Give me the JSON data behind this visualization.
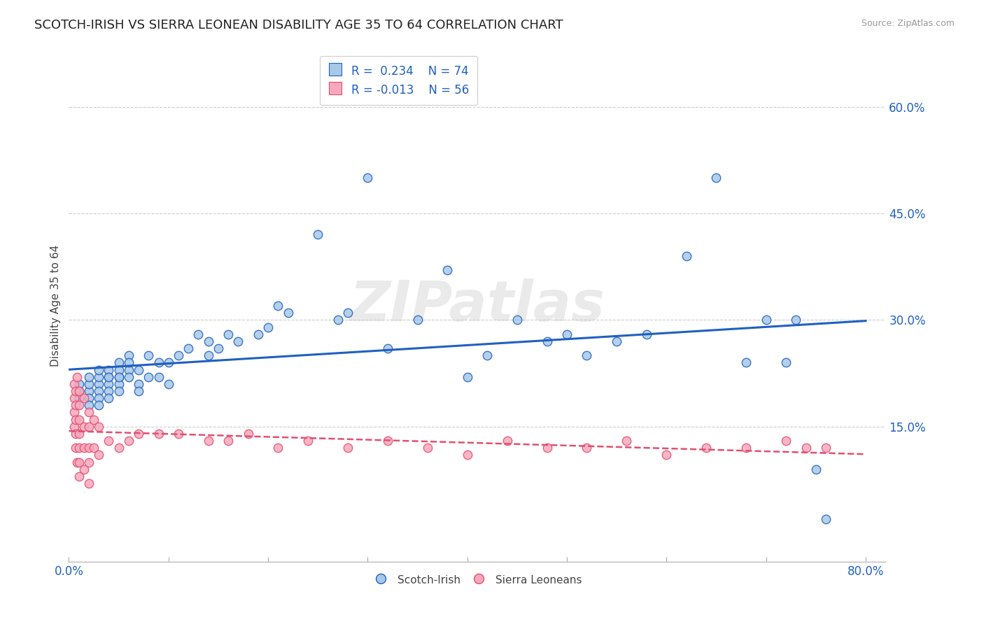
{
  "title": "SCOTCH-IRISH VS SIERRA LEONEAN DISABILITY AGE 35 TO 64 CORRELATION CHART",
  "source": "Source: ZipAtlas.com",
  "ylabel": "Disability Age 35 to 64",
  "xlim": [
    0.0,
    0.82
  ],
  "ylim": [
    -0.04,
    0.68
  ],
  "ytick_vals": [
    0.15,
    0.3,
    0.45,
    0.6
  ],
  "ytick_labels": [
    "15.0%",
    "30.0%",
    "45.0%",
    "60.0%"
  ],
  "xtick_vals": [
    0.0,
    0.1,
    0.2,
    0.3,
    0.4,
    0.5,
    0.6,
    0.7,
    0.8
  ],
  "xtick_labels": [
    "0.0%",
    "",
    "",
    "",
    "",
    "",
    "",
    "",
    "80.0%"
  ],
  "legend_line1": "R =  0.234    N = 74",
  "legend_line2": "R = -0.013    N = 56",
  "scotch_irish_color": "#a8c8e8",
  "sierra_leonean_color": "#f8a8bc",
  "scotch_irish_line_color": "#2060c0",
  "sierra_leonean_line_color": "#e05070",
  "watermark": "ZIPatlas",
  "background_color": "#ffffff",
  "grid_color": "#cccccc",
  "scotch_irish_x": [
    0.01,
    0.01,
    0.01,
    0.02,
    0.02,
    0.02,
    0.02,
    0.02,
    0.03,
    0.03,
    0.03,
    0.03,
    0.03,
    0.03,
    0.04,
    0.04,
    0.04,
    0.04,
    0.04,
    0.04,
    0.05,
    0.05,
    0.05,
    0.05,
    0.05,
    0.05,
    0.06,
    0.06,
    0.06,
    0.06,
    0.07,
    0.07,
    0.07,
    0.08,
    0.08,
    0.09,
    0.09,
    0.1,
    0.1,
    0.11,
    0.12,
    0.13,
    0.14,
    0.14,
    0.15,
    0.16,
    0.17,
    0.19,
    0.2,
    0.21,
    0.22,
    0.25,
    0.27,
    0.28,
    0.3,
    0.32,
    0.35,
    0.38,
    0.4,
    0.42,
    0.45,
    0.48,
    0.5,
    0.52,
    0.55,
    0.58,
    0.62,
    0.65,
    0.68,
    0.7,
    0.72,
    0.73,
    0.75,
    0.76
  ],
  "scotch_irish_y": [
    0.2,
    0.19,
    0.21,
    0.2,
    0.21,
    0.19,
    0.22,
    0.18,
    0.21,
    0.2,
    0.22,
    0.19,
    0.18,
    0.23,
    0.22,
    0.21,
    0.2,
    0.23,
    0.19,
    0.22,
    0.24,
    0.22,
    0.21,
    0.23,
    0.2,
    0.22,
    0.25,
    0.23,
    0.22,
    0.24,
    0.23,
    0.21,
    0.2,
    0.25,
    0.22,
    0.24,
    0.22,
    0.24,
    0.21,
    0.25,
    0.26,
    0.28,
    0.27,
    0.25,
    0.26,
    0.28,
    0.27,
    0.28,
    0.29,
    0.32,
    0.31,
    0.42,
    0.3,
    0.31,
    0.5,
    0.26,
    0.3,
    0.37,
    0.22,
    0.25,
    0.3,
    0.27,
    0.28,
    0.25,
    0.27,
    0.28,
    0.39,
    0.5,
    0.24,
    0.3,
    0.24,
    0.3,
    0.09,
    0.02
  ],
  "sierra_leonean_x": [
    0.005,
    0.005,
    0.005,
    0.005,
    0.007,
    0.007,
    0.007,
    0.007,
    0.007,
    0.008,
    0.008,
    0.01,
    0.01,
    0.01,
    0.01,
    0.01,
    0.01,
    0.01,
    0.015,
    0.015,
    0.015,
    0.015,
    0.02,
    0.02,
    0.02,
    0.02,
    0.02,
    0.025,
    0.025,
    0.03,
    0.03,
    0.04,
    0.05,
    0.06,
    0.07,
    0.09,
    0.11,
    0.14,
    0.16,
    0.18,
    0.21,
    0.24,
    0.28,
    0.32,
    0.36,
    0.4,
    0.44,
    0.48,
    0.52,
    0.56,
    0.6,
    0.64,
    0.68,
    0.72,
    0.74,
    0.76
  ],
  "sierra_leonean_y": [
    0.21,
    0.19,
    0.17,
    0.15,
    0.2,
    0.18,
    0.16,
    0.14,
    0.12,
    0.22,
    0.1,
    0.2,
    0.18,
    0.16,
    0.14,
    0.12,
    0.1,
    0.08,
    0.19,
    0.15,
    0.12,
    0.09,
    0.17,
    0.15,
    0.12,
    0.1,
    0.07,
    0.16,
    0.12,
    0.15,
    0.11,
    0.13,
    0.12,
    0.13,
    0.14,
    0.14,
    0.14,
    0.13,
    0.13,
    0.14,
    0.12,
    0.13,
    0.12,
    0.13,
    0.12,
    0.11,
    0.13,
    0.12,
    0.12,
    0.13,
    0.11,
    0.12,
    0.12,
    0.13,
    0.12,
    0.12
  ]
}
